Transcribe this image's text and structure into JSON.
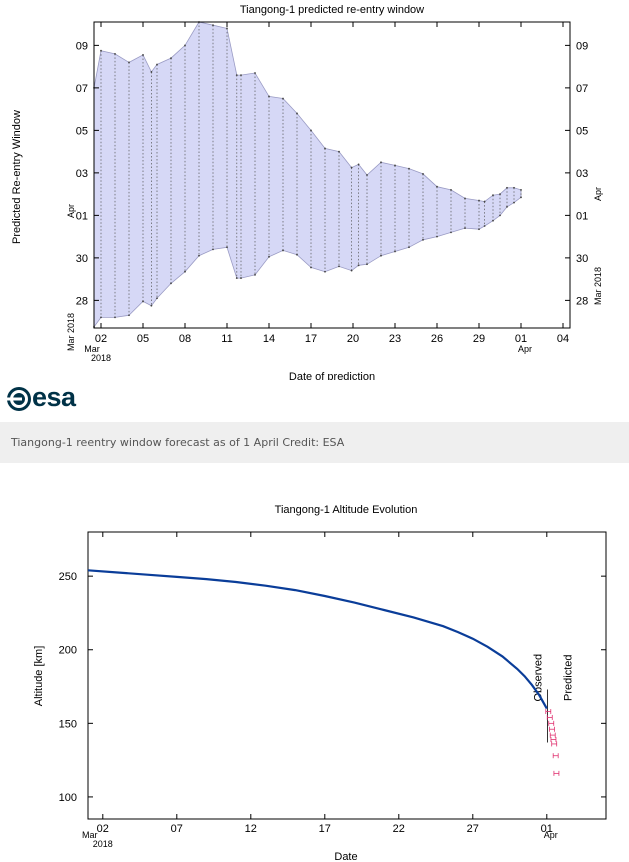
{
  "logo": {
    "text": "esa"
  },
  "caption": "Tiangong-1 reentry window forecast as of 1 April Credit: ESA",
  "chart_data": [
    {
      "type": "area",
      "title": "Tiangong-1 predicted re-entry window",
      "xlabel": "Date of prediction",
      "ylabel": "Predicted Re-entry Window",
      "x_tick_labels": [
        "02",
        "05",
        "08",
        "11",
        "14",
        "17",
        "20",
        "23",
        "26",
        "29",
        "01",
        "04"
      ],
      "x_tick_days": [
        2,
        5,
        8,
        11,
        14,
        17,
        20,
        23,
        26,
        29,
        32,
        35
      ],
      "x_sublabels": [
        {
          "day": 2,
          "lines": [
            "Mar",
            "2018"
          ]
        },
        {
          "day": 32,
          "lines": [
            "Apr"
          ]
        }
      ],
      "y_tick_labels": [
        "28",
        "30",
        "01",
        "03",
        "05",
        "07",
        "09"
      ],
      "y_tick_days": [
        28,
        30,
        32,
        34,
        36,
        38,
        40
      ],
      "y_left_sublabels": [
        "Mar 2018",
        "Apr"
      ],
      "y_right_sublabels": [
        "Mar 2018",
        "Apr"
      ],
      "xlim": [
        1.5,
        35.5
      ],
      "ylim": [
        26.7,
        41.1
      ],
      "series": [
        {
          "x": [
            1.5,
            2,
            3,
            4,
            5,
            5.6,
            6,
            7,
            8,
            9,
            10,
            11,
            11.7,
            12,
            13,
            14,
            15,
            16,
            17,
            18,
            19,
            19.9,
            20.4,
            21,
            22,
            23,
            24,
            25,
            26,
            27,
            28,
            29,
            29.4,
            30,
            30.5,
            31,
            31.5,
            32
          ],
          "upper": [
            38.0,
            39.75,
            39.6,
            39.2,
            39.55,
            38.75,
            39.1,
            39.4,
            40.0,
            41.1,
            40.95,
            40.8,
            38.6,
            38.6,
            38.7,
            37.6,
            37.5,
            36.8,
            36.0,
            35.15,
            35.0,
            34.25,
            34.4,
            33.9,
            34.5,
            34.35,
            34.2,
            33.95,
            33.35,
            33.2,
            32.8,
            32.7,
            32.65,
            32.95,
            33.0,
            33.3,
            33.3,
            33.2
          ],
          "lower": [
            26.75,
            27.2,
            27.2,
            27.3,
            27.95,
            27.75,
            28.1,
            28.8,
            29.35,
            30.1,
            30.4,
            30.5,
            29.05,
            29.05,
            29.2,
            30.05,
            30.35,
            30.15,
            29.55,
            29.35,
            29.6,
            29.4,
            29.65,
            29.7,
            30.1,
            30.3,
            30.5,
            30.85,
            31.0,
            31.2,
            31.4,
            31.35,
            31.5,
            31.75,
            32.0,
            32.4,
            32.6,
            32.85
          ]
        }
      ],
      "fill_color": "#d6d8f6",
      "line_color": "#9a9bc4",
      "grid": false
    },
    {
      "type": "line",
      "title": "Tiangong-1 Altitude Evolution",
      "xlabel": "Date",
      "ylabel": "Altitude [km]",
      "x_tick_labels": [
        "02",
        "07",
        "12",
        "17",
        "22",
        "27",
        "01"
      ],
      "x_tick_days": [
        2,
        7,
        12,
        17,
        22,
        27,
        32
      ],
      "x_sublabels": [
        {
          "day": 2,
          "lines": [
            "Mar",
            "2018"
          ]
        },
        {
          "day": 32,
          "lines": [
            "Apr"
          ]
        }
      ],
      "y_tick_labels": [
        "100",
        "150",
        "200",
        "250"
      ],
      "y_tick_values": [
        100,
        150,
        200,
        250
      ],
      "xlim": [
        1,
        36
      ],
      "ylim": [
        85,
        280
      ],
      "annotations": [
        {
          "text": "Observed",
          "x": 32.05
        },
        {
          "text": "Predicted",
          "x": 32.05
        }
      ],
      "series": [
        {
          "name": "Observed",
          "x": [
            1,
            3,
            5,
            7,
            9,
            11,
            13,
            15,
            17,
            19,
            21,
            23,
            25,
            26,
            27,
            28,
            29,
            30,
            30.5,
            31,
            31.5,
            32
          ],
          "y": [
            254,
            252.5,
            251,
            249.5,
            248,
            246,
            243.5,
            240.5,
            236.5,
            232,
            227,
            222,
            216,
            212,
            207.5,
            202,
            195.5,
            187,
            182,
            176,
            169,
            160
          ],
          "color": "#0a3d99"
        },
        {
          "name": "Predicted",
          "x": [
            32.1,
            32.2,
            32.3,
            32.35,
            32.4,
            32.45,
            32.5,
            32.6,
            32.65
          ],
          "y": [
            158,
            154,
            150,
            146,
            142,
            139,
            136,
            128,
            116
          ],
          "color": "#e0306f"
        }
      ],
      "grid": false
    }
  ]
}
